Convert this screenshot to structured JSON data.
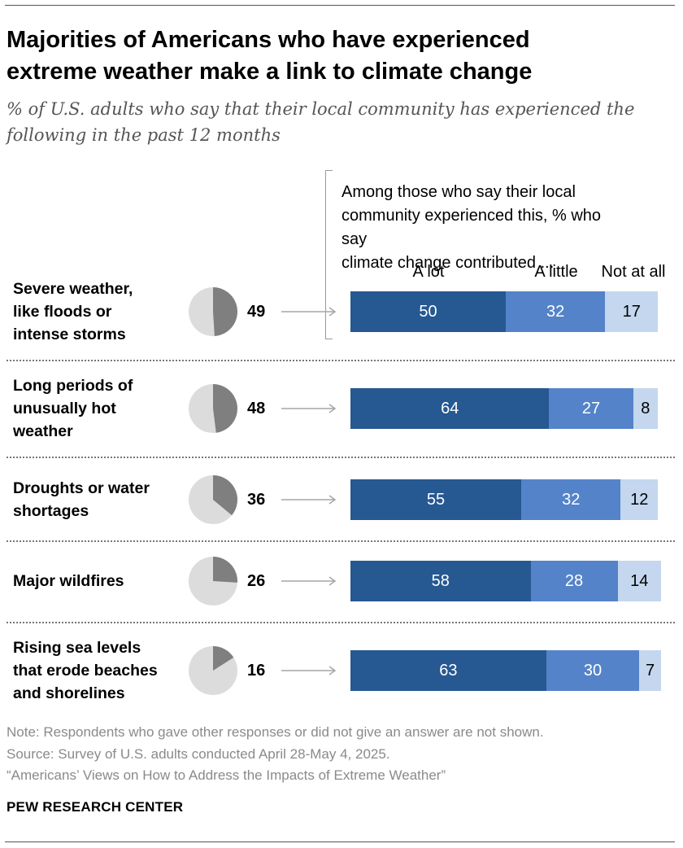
{
  "header": {
    "title_line1": "Majorities of Americans who have experienced",
    "title_line2": "extreme weather make a link to climate change",
    "subtitle_line1": "% of U.S. adults who say that their local community has experienced the",
    "subtitle_line2": "following in the past 12 months"
  },
  "bracket_note": {
    "line1": "Among those who say their local",
    "line2": "community experienced this, % who say",
    "line3": "climate change contributed ..."
  },
  "chart_data": {
    "type": "bar",
    "orientation": "horizontal-stacked",
    "categories": [
      [
        "Severe weather,",
        "like floods or",
        "intense storms"
      ],
      [
        "Long periods of",
        "unusually hot",
        "weather"
      ],
      [
        "Droughts or water",
        "shortages"
      ],
      [
        "Major wildfires"
      ],
      [
        "Rising sea levels",
        "that erode beaches",
        "and shorelines"
      ]
    ],
    "experienced": [
      49,
      48,
      36,
      26,
      16
    ],
    "series": [
      {
        "name": "A lot",
        "values": [
          50,
          64,
          55,
          58,
          63
        ]
      },
      {
        "name": "A little",
        "values": [
          32,
          27,
          32,
          28,
          30
        ]
      },
      {
        "name": "Not at all",
        "values": [
          17,
          8,
          12,
          14,
          7
        ]
      }
    ],
    "xlim": [
      0,
      100
    ],
    "legend": "top"
  },
  "colors": {
    "a_lot": "#265891",
    "a_little": "#5483c9",
    "not_at_all": "#c4d7ee",
    "pie_filled": "#7f7f7f",
    "pie_empty": "#dcdcdc",
    "arrow": "#a6a6a6"
  },
  "footer": {
    "note": "Note: Respondents who gave other responses or did not give an answer are not shown.",
    "source": "Source: Survey of U.S. adults conducted April 28-May 4, 2025.",
    "report": "“Americans’ Views on How to Address the Impacts of Extreme Weather”",
    "brand": "PEW RESEARCH CENTER"
  }
}
